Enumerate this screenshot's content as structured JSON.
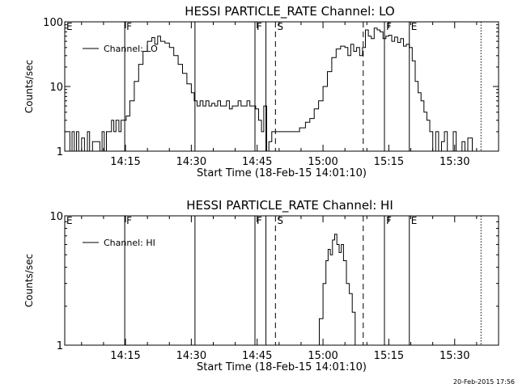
{
  "timestamp": "20-Feb-2015 17:56",
  "chart_data": [
    {
      "type": "line",
      "title": "HESSI PARTICLE_RATE Channel: LO",
      "xlabel": "Start Time (18-Feb-15 14:01:10)",
      "ylabel": "Counts/sec",
      "y_scale": "log",
      "ylim": [
        1,
        100
      ],
      "xlim": [
        "14:01:10",
        "15:40:00"
      ],
      "y_ticks": [
        {
          "v": 1,
          "label": "1"
        },
        {
          "v": 10,
          "label": "10"
        },
        {
          "v": 100,
          "label": "100"
        }
      ],
      "x_ticks": [
        {
          "t": "14:15",
          "label": "14:15"
        },
        {
          "t": "14:30",
          "label": "14:30"
        },
        {
          "t": "14:45",
          "label": "14:45"
        },
        {
          "t": "15:00",
          "label": "15:00"
        },
        {
          "t": "15:15",
          "label": "15:15"
        },
        {
          "t": "15:30",
          "label": "15:30"
        }
      ],
      "legend": {
        "label": "Channel: LO",
        "position": "top-left"
      },
      "markers": [
        {
          "t": "14:01:10",
          "label": "E",
          "style": "solid"
        },
        {
          "t": "14:14:50",
          "label": "F",
          "style": "solid"
        },
        {
          "t": "14:30:50",
          "label": "",
          "style": "solid"
        },
        {
          "t": "14:44:30",
          "label": "F",
          "style": "solid"
        },
        {
          "t": "14:47:00",
          "label": "",
          "style": "solid"
        },
        {
          "t": "14:49:10",
          "label": "S",
          "style": "dashed"
        },
        {
          "t": "15:09:10",
          "label": "",
          "style": "dashed"
        },
        {
          "t": "15:14:00",
          "label": "F",
          "style": "solid"
        },
        {
          "t": "15:19:40",
          "label": "E",
          "style": "solid"
        },
        {
          "t": "15:36:00",
          "label": "",
          "style": "dotted"
        }
      ],
      "series": [
        {
          "points": [
            [
              "14:01:10",
              2
            ],
            [
              "14:02:20",
              1
            ],
            [
              "14:02:50",
              2
            ],
            [
              "14:03:20",
              1
            ],
            [
              "14:03:50",
              2
            ],
            [
              "14:04:20",
              1
            ],
            [
              "14:05:00",
              1.6
            ],
            [
              "14:05:40",
              1
            ],
            [
              "14:06:20",
              2
            ],
            [
              "14:06:50",
              1
            ],
            [
              "14:07:30",
              1.4
            ],
            [
              "14:09:10",
              1
            ],
            [
              "14:09:40",
              2
            ],
            [
              "14:10:10",
              1
            ],
            [
              "14:10:40",
              2
            ],
            [
              "14:11:20",
              2
            ],
            [
              "14:11:50",
              3
            ],
            [
              "14:12:20",
              2
            ],
            [
              "14:12:50",
              3
            ],
            [
              "14:13:30",
              2
            ],
            [
              "14:14:00",
              3
            ],
            [
              "14:14:40",
              3
            ],
            [
              "14:15:10",
              3.5
            ],
            [
              "14:16:00",
              6
            ],
            [
              "14:17:00",
              12
            ],
            [
              "14:18:00",
              22
            ],
            [
              "14:19:00",
              35
            ],
            [
              "14:20:00",
              50
            ],
            [
              "14:21:00",
              57
            ],
            [
              "14:21:40",
              45
            ],
            [
              "14:22:20",
              60
            ],
            [
              "14:23:00",
              50
            ],
            [
              "14:24:00",
              47
            ],
            [
              "14:25:00",
              40
            ],
            [
              "14:26:00",
              30
            ],
            [
              "14:27:00",
              22
            ],
            [
              "14:28:00",
              16
            ],
            [
              "14:29:00",
              11
            ],
            [
              "14:30:00",
              8
            ],
            [
              "14:30:40",
              6
            ],
            [
              "14:31:20",
              5
            ],
            [
              "14:32:00",
              6
            ],
            [
              "14:32:40",
              5
            ],
            [
              "14:33:20",
              6
            ],
            [
              "14:34:00",
              5
            ],
            [
              "14:34:40",
              5.5
            ],
            [
              "14:35:20",
              5
            ],
            [
              "14:36:00",
              6
            ],
            [
              "14:36:40",
              5
            ],
            [
              "14:37:20",
              5
            ],
            [
              "14:38:00",
              6
            ],
            [
              "14:38:40",
              4.5
            ],
            [
              "14:39:20",
              5
            ],
            [
              "14:40:00",
              5
            ],
            [
              "14:40:40",
              6
            ],
            [
              "14:41:20",
              5
            ],
            [
              "14:42:00",
              5
            ],
            [
              "14:42:40",
              6
            ],
            [
              "14:43:20",
              5
            ],
            [
              "14:44:00",
              5
            ],
            [
              "14:44:40",
              4.5
            ],
            [
              "14:45:20",
              3
            ],
            [
              "14:46:00",
              2
            ],
            [
              "14:46:30",
              5
            ],
            [
              "14:47:10",
              1
            ],
            [
              "14:47:40",
              1.4
            ],
            [
              "14:48:20",
              2
            ],
            [
              "14:50:00",
              2
            ],
            [
              "14:52:00",
              2
            ],
            [
              "14:54:00",
              2
            ],
            [
              "14:54:40",
              2.3
            ],
            [
              "14:55:20",
              2.3
            ],
            [
              "14:56:00",
              2.8
            ],
            [
              "14:57:00",
              3.2
            ],
            [
              "14:58:00",
              4.5
            ],
            [
              "14:59:00",
              6
            ],
            [
              "15:00:00",
              10
            ],
            [
              "15:01:00",
              17
            ],
            [
              "15:02:00",
              28
            ],
            [
              "15:03:00",
              38
            ],
            [
              "15:04:00",
              42
            ],
            [
              "15:05:00",
              40
            ],
            [
              "15:05:40",
              30
            ],
            [
              "15:06:20",
              45
            ],
            [
              "15:07:00",
              35
            ],
            [
              "15:07:40",
              40
            ],
            [
              "15:08:20",
              30
            ],
            [
              "15:09:00",
              40
            ],
            [
              "15:09:40",
              75
            ],
            [
              "15:10:20",
              60
            ],
            [
              "15:11:00",
              55
            ],
            [
              "15:11:40",
              80
            ],
            [
              "15:12:20",
              75
            ],
            [
              "15:13:00",
              70
            ],
            [
              "15:13:40",
              55
            ],
            [
              "15:14:20",
              60
            ],
            [
              "15:15:00",
              62
            ],
            [
              "15:15:40",
              50
            ],
            [
              "15:16:20",
              58
            ],
            [
              "15:17:00",
              48
            ],
            [
              "15:17:40",
              55
            ],
            [
              "15:18:20",
              42
            ],
            [
              "15:19:00",
              45
            ],
            [
              "15:19:40",
              40
            ],
            [
              "15:20:20",
              25
            ],
            [
              "15:21:00",
              12
            ],
            [
              "15:21:40",
              8
            ],
            [
              "15:22:20",
              6
            ],
            [
              "15:23:00",
              4
            ],
            [
              "15:23:40",
              3
            ],
            [
              "15:24:20",
              2
            ],
            [
              "15:25:00",
              1
            ],
            [
              "15:25:40",
              2
            ],
            [
              "15:26:20",
              1
            ],
            [
              "15:27:00",
              1.4
            ],
            [
              "15:27:40",
              2
            ],
            [
              "15:28:20",
              1
            ],
            [
              "15:29:00",
              1
            ],
            [
              "15:29:40",
              2
            ],
            [
              "15:30:20",
              1
            ],
            [
              "15:31:00",
              1
            ],
            [
              "15:31:40",
              1.4
            ],
            [
              "15:32:20",
              1
            ],
            [
              "15:33:00",
              1.6
            ],
            [
              "15:34:00",
              1
            ],
            [
              "15:35:00",
              1
            ]
          ]
        }
      ]
    },
    {
      "type": "line",
      "title": "HESSI PARTICLE_RATE Channel: HI",
      "xlabel": "Start Time (18-Feb-15 14:01:10)",
      "ylabel": "Counts/sec",
      "y_scale": "log",
      "ylim": [
        1,
        10
      ],
      "xlim": [
        "14:01:10",
        "15:40:00"
      ],
      "y_ticks": [
        {
          "v": 1,
          "label": "1"
        },
        {
          "v": 10,
          "label": "10"
        }
      ],
      "x_ticks": [
        {
          "t": "14:15",
          "label": "14:15"
        },
        {
          "t": "14:30",
          "label": "14:30"
        },
        {
          "t": "14:45",
          "label": "14:45"
        },
        {
          "t": "15:00",
          "label": "15:00"
        },
        {
          "t": "15:15",
          "label": "15:15"
        },
        {
          "t": "15:30",
          "label": "15:30"
        }
      ],
      "legend": {
        "label": "Channel: HI",
        "position": "top-left"
      },
      "markers": [
        {
          "t": "14:01:10",
          "label": "E",
          "style": "solid"
        },
        {
          "t": "14:14:50",
          "label": "F",
          "style": "solid"
        },
        {
          "t": "14:30:50",
          "label": "",
          "style": "solid"
        },
        {
          "t": "14:44:30",
          "label": "F",
          "style": "solid"
        },
        {
          "t": "14:47:00",
          "label": "",
          "style": "solid"
        },
        {
          "t": "14:49:10",
          "label": "S",
          "style": "dashed"
        },
        {
          "t": "15:09:10",
          "label": "",
          "style": "dashed"
        },
        {
          "t": "15:14:00",
          "label": "F",
          "style": "solid"
        },
        {
          "t": "15:19:40",
          "label": "E",
          "style": "solid"
        },
        {
          "t": "15:36:00",
          "label": "",
          "style": "dotted"
        }
      ],
      "series": [
        {
          "points": [
            [
              "14:58:20",
              1
            ],
            [
              "14:59:10",
              1.6
            ],
            [
              "15:00:00",
              3
            ],
            [
              "15:00:40",
              4.5
            ],
            [
              "15:01:10",
              5.5
            ],
            [
              "15:01:40",
              5
            ],
            [
              "15:02:10",
              6.5
            ],
            [
              "15:02:40",
              7.2
            ],
            [
              "15:03:10",
              6
            ],
            [
              "15:03:40",
              5.2
            ],
            [
              "15:04:10",
              6
            ],
            [
              "15:04:40",
              4.5
            ],
            [
              "15:05:20",
              3
            ],
            [
              "15:06:00",
              2.5
            ],
            [
              "15:06:40",
              1.8
            ],
            [
              "15:07:20",
              1
            ]
          ]
        }
      ]
    }
  ]
}
